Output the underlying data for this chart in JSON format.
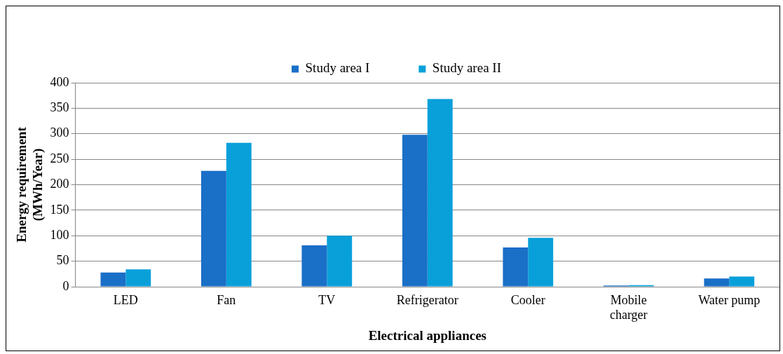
{
  "chart_data": {
    "type": "bar",
    "xlabel": "Electrical appliances",
    "ylabel": "Energy requirement (MWh/Year)",
    "categories": [
      "LED",
      "Fan",
      "TV",
      "Refrigerator",
      "Cooler",
      "Mobile charger",
      "Water pump"
    ],
    "series": [
      {
        "name": "Study area I",
        "color": "#1a6fc7",
        "values": [
          28,
          227,
          81,
          298,
          77,
          2.5,
          16
        ]
      },
      {
        "name": "Study area II",
        "color": "#09a0da",
        "values": [
          34,
          282,
          100,
          368,
          96,
          3,
          20
        ]
      }
    ],
    "ylim": [
      0,
      400
    ],
    "yticks": [
      0,
      50,
      100,
      150,
      200,
      250,
      300,
      350,
      400
    ],
    "grid": "y",
    "legend": "top"
  }
}
